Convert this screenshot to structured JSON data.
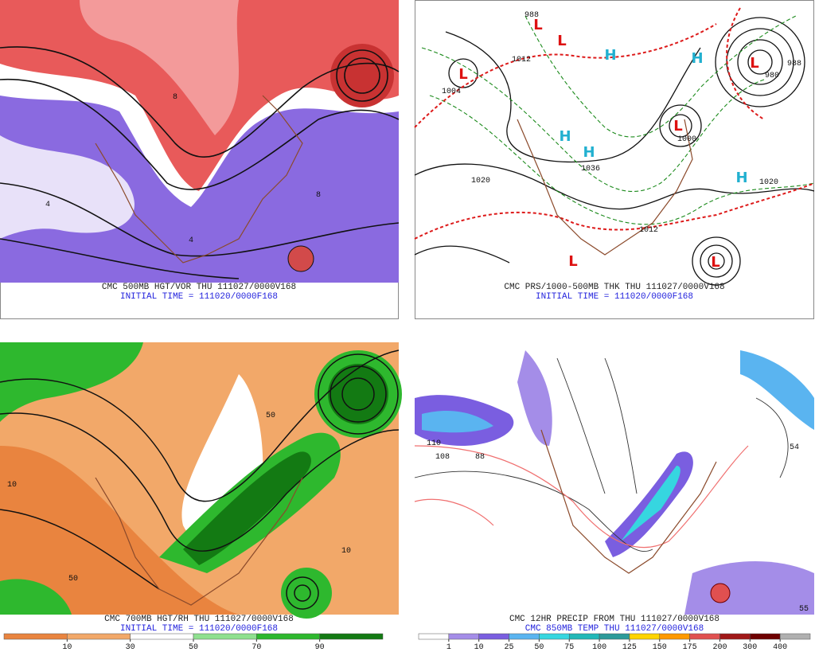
{
  "panels": [
    {
      "caption": "CMC 500MB HGT/VOR THU 111027/0000V168",
      "subcaption": "INITIAL TIME = 111020/0000F168",
      "labels": [
        "8",
        "8",
        "4",
        "4"
      ]
    },
    {
      "caption": "CMC PRS/1000-500MB THK THU 111027/0000V168",
      "subcaption": "INITIAL TIME = 111020/0000F168",
      "labels": [
        "L",
        "L",
        "L",
        "L",
        "L",
        "L",
        "L",
        "H",
        "H",
        "H",
        "H",
        "H",
        "1004",
        "1012",
        "980",
        "1000",
        "1020",
        "1020",
        "1036",
        "1012",
        "988",
        "988"
      ]
    },
    {
      "caption": "CMC 700MB HGT/RH THU 111027/0000V168",
      "subcaption": "INITIAL TIME = 111020/0000F168",
      "labels": [
        "10",
        "50",
        "10",
        "50"
      ]
    },
    {
      "caption": "CMC 12HR PRECIP FROM THU 111027/0000V168",
      "subcaption": "CMC 850MB TEMP THU 111027/0000V168",
      "labels": [
        "110",
        "108",
        "88",
        "54",
        "55"
      ]
    }
  ],
  "legends": [
    {
      "colors": [
        "#e9843f",
        "#f2a869",
        "#ffffff",
        "#8fe08f",
        "#2eb82e",
        "#137a13"
      ],
      "labels": [
        10,
        30,
        50,
        70,
        90
      ]
    },
    {
      "colors": [
        "#ffffff",
        "#a48de8",
        "#7a5ee0",
        "#5ab4f0",
        "#36d6e0",
        "#22b8b8",
        "#2c9a9a",
        "#ffd400",
        "#ff9900",
        "#e05050",
        "#a01818",
        "#6e0000",
        "#b0b0b0"
      ],
      "labels": [
        1,
        10,
        25,
        50,
        75,
        100,
        125,
        150,
        175,
        200,
        300,
        400
      ]
    }
  ]
}
